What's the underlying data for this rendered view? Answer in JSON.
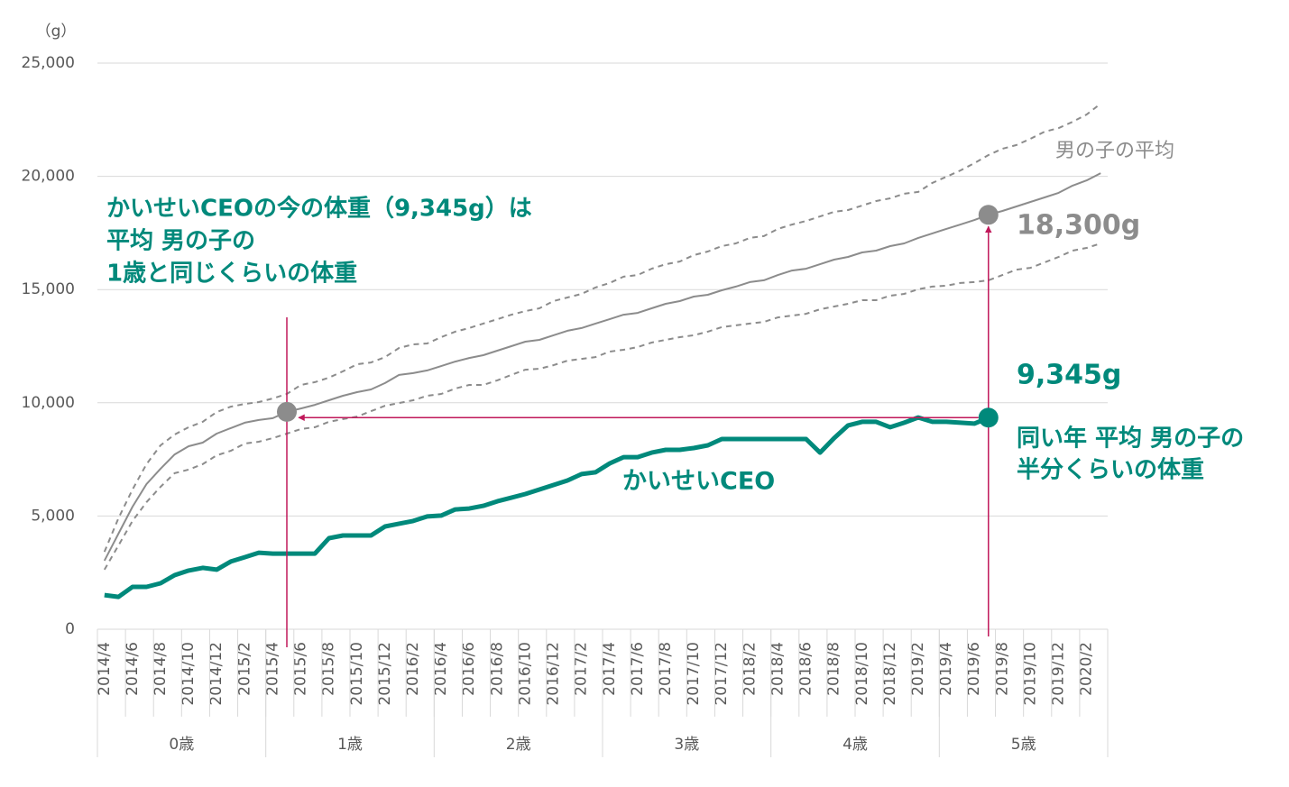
{
  "chart_data": {
    "type": "line",
    "y_unit": "（g）",
    "categories": [
      "2014/4",
      null,
      "2014/6",
      null,
      "2014/8",
      null,
      "2014/10",
      null,
      "2014/12",
      null,
      "2015/2",
      null,
      "2015/4",
      null,
      "2015/6",
      null,
      "2015/8",
      null,
      "2015/10",
      null,
      "2015/12",
      null,
      "2016/2",
      null,
      "2016/4",
      null,
      "2016/6",
      null,
      "2016/8",
      null,
      "2016/10",
      null,
      "2016/12",
      null,
      "2017/2",
      null,
      "2017/4",
      null,
      "2017/6",
      null,
      "2017/8",
      null,
      "2017/10",
      null,
      "2017/12",
      null,
      "2018/2",
      null,
      "2018/4",
      null,
      "2018/6",
      null,
      "2018/8",
      null,
      "2018/10",
      null,
      "2018/12",
      null,
      "2019/2",
      null,
      "2019/4",
      null,
      "2019/6",
      null,
      "2019/8",
      null,
      "2019/10",
      null,
      "2019/12",
      null,
      "2020/2",
      null
    ],
    "groups": [
      "0歳",
      "1歳",
      "2歳",
      "3歳",
      "4歳",
      "5歳"
    ],
    "series": [
      {
        "color": "#8c8c8c",
        "dashed": true,
        "values": [
          3420,
          4900,
          6170,
          7290,
          8120,
          8600,
          8920,
          9160,
          9590,
          9830,
          9950,
          10030,
          10190,
          10390,
          10790,
          10910,
          11110,
          11390,
          11700,
          11780,
          12020,
          12420,
          12580,
          12620,
          12900,
          13140,
          13300,
          13500,
          13690,
          13890,
          14050,
          14170,
          14490,
          14650,
          14810,
          15090,
          15290,
          15570,
          15640,
          15920,
          16120,
          16240,
          16520,
          16680,
          16920,
          17040,
          17280,
          17360,
          17680,
          17870,
          18030,
          18230,
          18430,
          18510,
          18710,
          18910,
          19030,
          19230,
          19310,
          19710,
          19980,
          20260,
          20580,
          20940,
          21220,
          21380,
          21660,
          21970,
          22130,
          22410,
          22730,
          23210
        ]
      },
      {
        "color": "#8c8c8c",
        "dashed": true,
        "values": [
          2630,
          3700,
          4780,
          5610,
          6290,
          6890,
          7050,
          7290,
          7680,
          7880,
          8200,
          8280,
          8440,
          8640,
          8840,
          8920,
          9160,
          9280,
          9390,
          9630,
          9870,
          9990,
          10110,
          10310,
          10390,
          10630,
          10790,
          10790,
          10990,
          11230,
          11460,
          11500,
          11660,
          11860,
          11940,
          12020,
          12260,
          12340,
          12460,
          12660,
          12780,
          12900,
          12980,
          13140,
          13340,
          13420,
          13500,
          13570,
          13770,
          13850,
          13930,
          14130,
          14250,
          14370,
          14530,
          14530,
          14730,
          14810,
          15010,
          15130,
          15170,
          15290,
          15330,
          15410,
          15640,
          15880,
          15960,
          16200,
          16440,
          16720,
          16840,
          17040
        ]
      },
      {
        "name": "男の子の平均",
        "color": "#8c8c8c",
        "values": [
          3030,
          4220,
          5410,
          6410,
          7090,
          7720,
          8080,
          8240,
          8640,
          8880,
          9120,
          9240,
          9320,
          9600,
          9750,
          9910,
          10110,
          10310,
          10470,
          10590,
          10870,
          11230,
          11310,
          11430,
          11620,
          11820,
          11980,
          12100,
          12300,
          12500,
          12700,
          12780,
          12980,
          13180,
          13300,
          13500,
          13690,
          13890,
          13970,
          14170,
          14370,
          14490,
          14690,
          14770,
          14970,
          15130,
          15330,
          15410,
          15640,
          15840,
          15920,
          16120,
          16320,
          16440,
          16640,
          16720,
          16920,
          17040,
          17280,
          17480,
          17680,
          17870,
          18070,
          18300,
          18470,
          18670,
          18870,
          19070,
          19270,
          19590,
          19820,
          20140
        ]
      },
      {
        "name": "かいせいCEO",
        "color": "#00897b",
        "values": [
          1510,
          1430,
          1870,
          1870,
          2030,
          2390,
          2590,
          2710,
          2630,
          2990,
          3180,
          3380,
          3340,
          3340,
          3340,
          3340,
          4020,
          4140,
          4140,
          4140,
          4540,
          4660,
          4780,
          4980,
          5020,
          5290,
          5330,
          5450,
          5650,
          5810,
          5970,
          6170,
          6370,
          6570,
          6850,
          6930,
          7320,
          7600,
          7600,
          7800,
          7920,
          7920,
          8000,
          8120,
          8400,
          8400,
          8400,
          8400,
          8400,
          8400,
          8400,
          7800,
          8440,
          9000,
          9160,
          9160,
          8920,
          9120,
          9350,
          9160,
          9160,
          9120,
          9080,
          9345,
          null,
          null,
          null,
          null,
          null,
          null,
          null,
          null
        ]
      }
    ],
    "callouts": [
      {
        "index": 13,
        "value": 9600,
        "color": "#8c8c8c"
      },
      {
        "index": 63,
        "value": 18300,
        "label": "18,300g",
        "color": "#8c8c8c"
      },
      {
        "index": 63,
        "value": 9345,
        "label": "9,345g",
        "color": "#00897b"
      }
    ],
    "annotations": {
      "left": [
        "かいせいCEOの今の体重（9,345g）は",
        "平均 男の子の",
        "1歳と同じくらいの体重"
      ],
      "right": [
        "同い年 平均 男の子の",
        "半分くらいの体重"
      ]
    },
    "arrow_color": "#c0185a",
    "ylim": [
      0,
      25000
    ],
    "yticks": [
      0,
      {
        "value": 5000,
        "label": "5,000"
      },
      {
        "value": 10000,
        "label": "10,000"
      },
      {
        "value": 15000,
        "label": "15,000"
      },
      {
        "value": 20000,
        "label": "20,000"
      },
      {
        "value": 25000,
        "label": "25,000"
      }
    ],
    "grid": true
  }
}
